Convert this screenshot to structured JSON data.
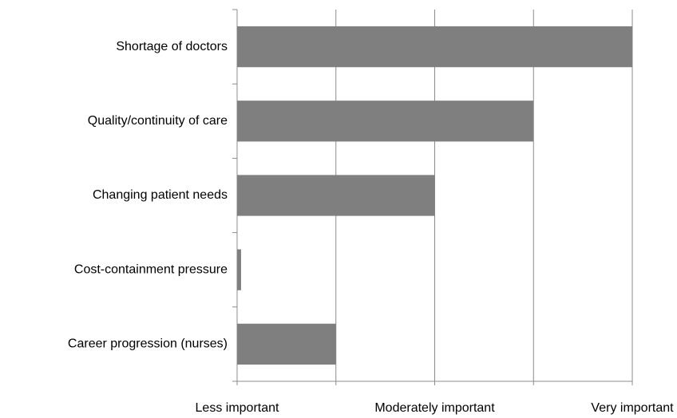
{
  "chart_data": {
    "type": "barh",
    "categories": [
      "Shortage of doctors",
      "Quality/continuity of care",
      "Changing patient needs",
      "Cost-containment pressure",
      "Career progression (nurses)"
    ],
    "values": [
      4,
      3,
      2,
      0.04,
      1
    ],
    "color": "#7f7f7f",
    "xlim": [
      0,
      4
    ],
    "xticks": [
      {
        "value": 0,
        "label": "Less important"
      },
      {
        "value": 1,
        "label": null
      },
      {
        "value": 2,
        "label": "Moderately important"
      },
      {
        "value": 3,
        "label": null
      },
      {
        "value": 4,
        "label": "Very important"
      }
    ],
    "grid": true
  }
}
